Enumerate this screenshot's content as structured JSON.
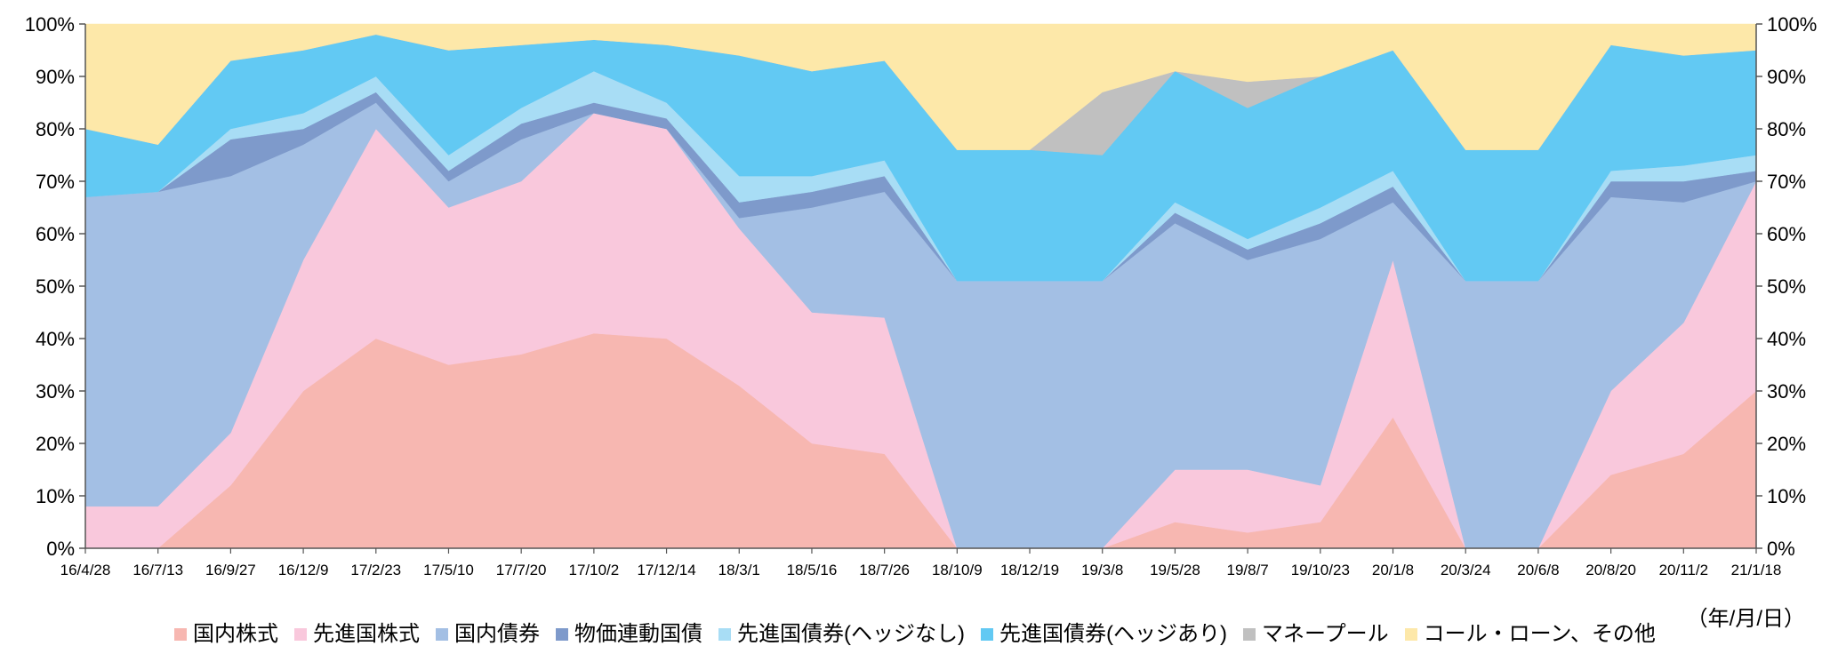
{
  "chart_data": {
    "type": "area",
    "stacked": true,
    "percent": true,
    "ylim": [
      0,
      100
    ],
    "yticks": [
      "0%",
      "10%",
      "20%",
      "30%",
      "40%",
      "50%",
      "60%",
      "70%",
      "80%",
      "90%",
      "100%"
    ],
    "secondary_yaxis": true,
    "x_unit_label": "（年/月/日）",
    "categories": [
      "16/4/28",
      "16/7/13",
      "16/9/27",
      "16/12/9",
      "17/2/23",
      "17/5/10",
      "17/7/20",
      "17/10/2",
      "17/12/14",
      "18/3/1",
      "18/5/16",
      "18/7/26",
      "18/10/9",
      "18/12/19",
      "19/3/8",
      "19/5/28",
      "19/8/7",
      "19/10/23",
      "20/1/8",
      "20/3/24",
      "20/6/8",
      "20/8/20",
      "20/11/2",
      "21/1/18"
    ],
    "legend_position": "bottom",
    "series": [
      {
        "name": "国内株式",
        "color": "#f7b7b1",
        "values": [
          0,
          0,
          12,
          30,
          40,
          35,
          37,
          41,
          40,
          31,
          20,
          18,
          0,
          0,
          0,
          5,
          3,
          5,
          25,
          0,
          0,
          14,
          18,
          30
        ]
      },
      {
        "name": "先進国株式",
        "color": "#f9c8dc",
        "values": [
          8,
          8,
          10,
          25,
          40,
          30,
          33,
          42,
          40,
          30,
          25,
          26,
          0,
          0,
          0,
          10,
          12,
          7,
          30,
          0,
          0,
          16,
          25,
          40
        ]
      },
      {
        "name": "国内債券",
        "color": "#a3bfe4",
        "values": [
          59,
          60,
          49,
          22,
          5,
          5,
          8,
          0,
          0,
          2,
          20,
          24,
          51,
          51,
          51,
          47,
          40,
          47,
          11,
          51,
          51,
          37,
          23,
          0
        ]
      },
      {
        "name": "物価連動国債",
        "color": "#7e9acb",
        "values": [
          0,
          0,
          7,
          3,
          2,
          2,
          3,
          2,
          2,
          3,
          3,
          3,
          0,
          0,
          0,
          2,
          2,
          3,
          3,
          0,
          0,
          3,
          4,
          2
        ]
      },
      {
        "name": "先進国債券(ヘッジなし)",
        "color": "#a8ddf5",
        "values": [
          0,
          0,
          2,
          3,
          3,
          3,
          3,
          6,
          3,
          5,
          3,
          3,
          0,
          0,
          0,
          2,
          2,
          3,
          3,
          0,
          0,
          2,
          3,
          3
        ]
      },
      {
        "name": "先進国債券(ヘッジあり)",
        "color": "#62c9f3",
        "values": [
          13,
          9,
          13,
          12,
          8,
          20,
          12,
          6,
          11,
          23,
          20,
          19,
          25,
          25,
          24,
          25,
          25,
          25,
          23,
          25,
          25,
          24,
          21,
          20
        ]
      },
      {
        "name": "マネープール",
        "color": "#c0c0c0",
        "values": [
          0,
          0,
          0,
          0,
          0,
          0,
          0,
          0,
          0,
          0,
          0,
          0,
          0,
          0,
          12,
          0,
          5,
          0,
          0,
          0,
          0,
          0,
          0,
          0
        ]
      },
      {
        "name": "コール・ローン、その他",
        "color": "#fde8a9",
        "values": [
          20,
          23,
          7,
          5,
          2,
          5,
          4,
          3,
          4,
          6,
          9,
          7,
          24,
          24,
          13,
          9,
          11,
          10,
          5,
          24,
          24,
          4,
          6,
          5
        ]
      }
    ]
  }
}
